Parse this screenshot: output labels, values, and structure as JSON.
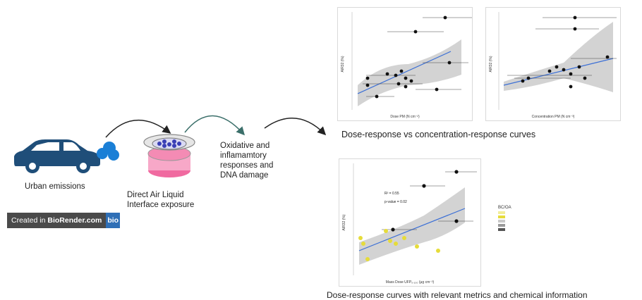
{
  "labels": {
    "urban": "Urban emissions",
    "exposure_line1": "Direct Air Liquid",
    "exposure_line2": "Interface exposure",
    "outcome_line1": "Oxidative and",
    "outcome_line2": "inflamamtory",
    "outcome_line3": "responses and",
    "outcome_line4": "DNA damage",
    "caption_top": "Dose-response vs concentration-response curves",
    "caption_bottom": "Dose-response curves with relevant metrics and chemical information"
  },
  "badge": {
    "text_prefix": "Created in ",
    "text_brand": "BioRender.com",
    "mark": "bio"
  },
  "icons": [
    "car-icon",
    "exhaust-cloud-icon",
    "cell-culture-insert-icon",
    "curved-arrow-icon"
  ],
  "colors": {
    "car": "#1f4e79",
    "cloud": "#1a7fd6",
    "dish_pink": "#f06aa0",
    "cells": "#3a3fb5",
    "arrow_green": "#3b6f6a",
    "fit_line": "#3b6fd6",
    "band": "#bfbfbf",
    "scatter_yellow": "#e6dc3a"
  },
  "plots": {
    "p1": {
      "xlabel": "Dose PM (N cm⁻²)",
      "ylabel": "AIR32 (%)"
    },
    "p2": {
      "xlabel": "Concentration PM (N cm⁻³)",
      "ylabel": "AIR32 (%)"
    },
    "p3": {
      "xlabel": "Mass Dose UFP₀.₁₀₀ (μg cm⁻²)",
      "ylabel": "AIR32 (%)",
      "annot1": "R² = 0.55",
      "annot2": "p-value =  0.02",
      "legend_title": "BC/OA"
    }
  }
}
